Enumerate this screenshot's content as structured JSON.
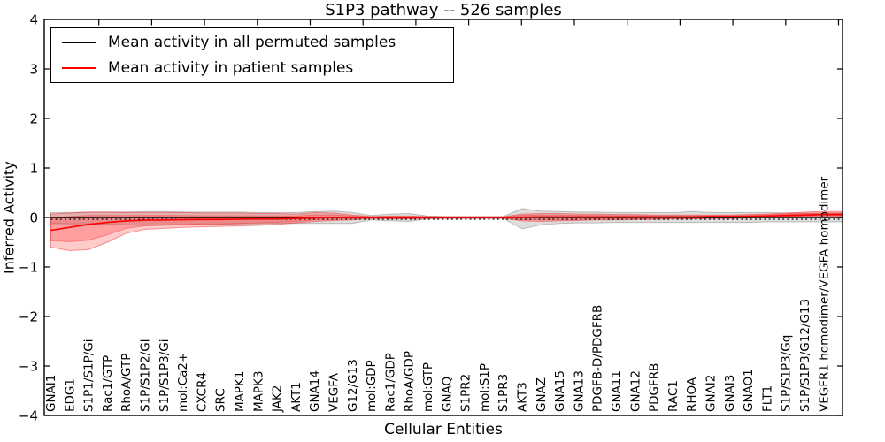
{
  "figure": {
    "title": "S1P3 pathway -- 526 samples",
    "xlabel": "Cellular Entities",
    "ylabel": "Inferred Activity",
    "legend": [
      {
        "label": "Mean activity in all permuted samples",
        "color": "#000000"
      },
      {
        "label": "Mean activity in patient samples",
        "color": "#ff0000"
      }
    ]
  },
  "chart_data": {
    "type": "line",
    "title": "S1P3 pathway -- 526 samples",
    "xlabel": "Cellular Entities",
    "ylabel": "Inferred Activity",
    "ylim": [
      -4,
      4
    ],
    "grid": false,
    "legend_position": "upper left",
    "yticks": [
      {
        "v": 4,
        "label": "4"
      },
      {
        "v": 3,
        "label": "3"
      },
      {
        "v": 2,
        "label": "2"
      },
      {
        "v": 1,
        "label": "1"
      },
      {
        "v": 0,
        "label": "0"
      },
      {
        "v": -1,
        "label": "−1"
      },
      {
        "v": -2,
        "label": "−2"
      },
      {
        "v": -3,
        "label": "−3"
      },
      {
        "v": -4,
        "label": "−4"
      }
    ],
    "categories": [
      "GNAI1",
      "EDG1",
      "S1P1/S1P/Gi",
      "Rac1/GTP",
      "RhoA/GTP",
      "S1P/S1P2/Gi",
      "S1P/S1P3/Gi",
      "mol:Ca2+",
      "CXCR4",
      "SRC",
      "MAPK1",
      "MAPK3",
      "JAK2",
      "AKT1",
      "GNA14",
      "VEGFA",
      "G12/G13",
      "mol:GDP",
      "Rac1/GDP",
      "RhoA/GDP",
      "mol:GTP",
      "GNAQ",
      "S1PR2",
      "mol:S1P",
      "S1PR3",
      "AKT3",
      "GNAZ",
      "GNA15",
      "GNA13",
      "PDGFB-D/PDGFRB",
      "GNA11",
      "GNA12",
      "PDGFRB",
      "RAC1",
      "RHOA",
      "GNAI2",
      "GNAI3",
      "GNAO1",
      "FLT1",
      "S1P/S1P3/Gq",
      "S1P/S1P3/G12/G13",
      "VEGFR1 homodimer/VEGFA homodimer"
    ],
    "series": [
      {
        "name": "Mean activity in all permuted samples",
        "color": "#000000",
        "values": [
          0,
          0,
          0,
          0,
          0,
          0,
          0,
          0,
          0,
          0,
          0,
          0,
          0,
          0,
          0,
          0,
          0,
          0,
          0,
          0,
          0,
          0,
          0,
          0,
          0,
          0,
          0,
          0,
          0,
          0,
          0,
          0,
          0,
          0,
          0,
          0,
          0,
          0,
          0,
          0,
          0,
          0
        ]
      },
      {
        "name": "Mean activity in patient samples",
        "color": "#ff0000",
        "values": [
          -0.26,
          -0.2,
          -0.14,
          -0.1,
          -0.07,
          -0.055,
          -0.05,
          -0.045,
          -0.04,
          -0.04,
          -0.035,
          -0.03,
          -0.03,
          -0.02,
          -0.01,
          0,
          0,
          0,
          0,
          0,
          0,
          0,
          0,
          0,
          0,
          0.005,
          0.01,
          0.01,
          0.01,
          0.01,
          0.01,
          0.01,
          0.01,
          0.01,
          0.01,
          0.015,
          0.015,
          0.02,
          0.03,
          0.04,
          0.05,
          0.06
        ]
      }
    ],
    "zero_line": {
      "style": "dotted",
      "color": "#000000",
      "y": 0
    },
    "bands": [
      {
        "name": "permuted-spread",
        "fill": "rgba(0,0,0,0.13)",
        "edge": "rgba(0,0,0,0.22)",
        "upper": [
          0.1,
          0.1,
          0.11,
          0.11,
          0.11,
          0.12,
          0.12,
          0.11,
          0.11,
          0.11,
          0.11,
          0.1,
          0.1,
          0.1,
          0.12,
          0.13,
          0.1,
          0.04,
          0.07,
          0.08,
          0.03,
          0.02,
          0.02,
          0.02,
          0.02,
          0.18,
          0.13,
          0.12,
          0.11,
          0.11,
          0.1,
          0.1,
          0.1,
          0.1,
          0.12,
          0.1,
          0.1,
          0.1,
          0.1,
          0.09,
          0.09,
          0.09
        ],
        "lower": [
          -0.12,
          -0.13,
          -0.13,
          -0.14,
          -0.15,
          -0.16,
          -0.16,
          -0.15,
          -0.14,
          -0.14,
          -0.13,
          -0.13,
          -0.12,
          -0.12,
          -0.12,
          -0.12,
          -0.12,
          -0.05,
          -0.07,
          -0.08,
          -0.03,
          -0.02,
          -0.02,
          -0.02,
          -0.02,
          -0.23,
          -0.15,
          -0.12,
          -0.11,
          -0.11,
          -0.1,
          -0.1,
          -0.1,
          -0.1,
          -0.1,
          -0.1,
          -0.1,
          -0.1,
          -0.09,
          -0.09,
          -0.09,
          -0.09
        ]
      },
      {
        "name": "patient-spread-outer",
        "fill": "rgba(255,0,0,0.20)",
        "edge": "rgba(255,0,0,0.40)",
        "upper": [
          0.07,
          0.09,
          0.11,
          0.11,
          0.1,
          0.1,
          0.1,
          0.1,
          0.09,
          0.09,
          0.09,
          0.08,
          0.08,
          0.07,
          0.1,
          0.09,
          0.05,
          0.02,
          0.03,
          0.03,
          0.02,
          0.015,
          0.015,
          0.015,
          0.015,
          0.07,
          0.08,
          0.08,
          0.07,
          0.07,
          0.06,
          0.06,
          0.05,
          0.05,
          0.05,
          0.05,
          0.05,
          0.06,
          0.07,
          0.09,
          0.11,
          0.12
        ],
        "lower": [
          -0.6,
          -0.67,
          -0.65,
          -0.5,
          -0.32,
          -0.24,
          -0.22,
          -0.2,
          -0.19,
          -0.18,
          -0.17,
          -0.16,
          -0.14,
          -0.11,
          -0.08,
          -0.06,
          -0.05,
          -0.02,
          -0.03,
          -0.03,
          -0.02,
          -0.015,
          -0.015,
          -0.015,
          -0.015,
          -0.07,
          -0.08,
          -0.07,
          -0.06,
          -0.05,
          -0.05,
          -0.04,
          -0.04,
          -0.03,
          -0.03,
          -0.02,
          -0.02,
          -0.01,
          0.0,
          0.01,
          0.02,
          0.02
        ]
      },
      {
        "name": "patient-spread-inner",
        "fill": "rgba(255,0,0,0.22)",
        "edge": "rgba(255,0,0,0.30)",
        "upper": [
          0.0,
          0.02,
          0.04,
          0.04,
          0.04,
          0.04,
          0.04,
          0.04,
          0.035,
          0.035,
          0.035,
          0.033,
          0.033,
          0.03,
          0.055,
          0.05,
          0.03,
          0.012,
          0.018,
          0.018,
          0.012,
          0.009,
          0.009,
          0.009,
          0.009,
          0.042,
          0.05,
          0.048,
          0.042,
          0.042,
          0.037,
          0.037,
          0.032,
          0.032,
          0.032,
          0.036,
          0.036,
          0.044,
          0.052,
          0.068,
          0.082,
          0.092
        ],
        "lower": [
          -0.47,
          -0.49,
          -0.46,
          -0.35,
          -0.22,
          -0.17,
          -0.155,
          -0.14,
          -0.13,
          -0.13,
          -0.12,
          -0.11,
          -0.1,
          -0.08,
          -0.05,
          -0.04,
          -0.03,
          -0.013,
          -0.02,
          -0.02,
          -0.013,
          -0.01,
          -0.01,
          -0.01,
          -0.01,
          -0.045,
          -0.05,
          -0.045,
          -0.04,
          -0.03,
          -0.03,
          -0.026,
          -0.026,
          -0.02,
          -0.02,
          -0.013,
          -0.013,
          -0.007,
          0.006,
          0.018,
          0.032,
          0.038
        ]
      }
    ]
  }
}
